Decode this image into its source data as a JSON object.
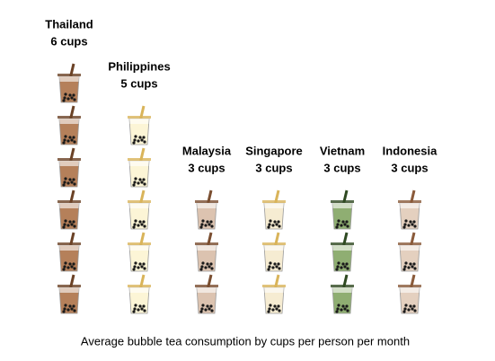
{
  "chart_data": {
    "type": "pictograph",
    "title": "Average bubble tea consumption by cups per person per month",
    "categories": [
      "Thailand",
      "Philippines",
      "Malaysia",
      "Singapore",
      "Vietnam",
      "Indonesia"
    ],
    "values": [
      6,
      5,
      3,
      3,
      3,
      3
    ],
    "value_labels": [
      "6 cups",
      "5 cups",
      "3 cups",
      "3 cups",
      "3 cups",
      "3 cups"
    ],
    "colors": [
      "#b5805a",
      "#fcf5d6",
      "#dcc3b0",
      "#f6ecd2",
      "#8fae72",
      "#e4d0bf"
    ],
    "straw_colors": [
      "#6b4226",
      "#d9b45a",
      "#7a4e30",
      "#d9b45a",
      "#2f4a22",
      "#8a5a3a"
    ]
  }
}
